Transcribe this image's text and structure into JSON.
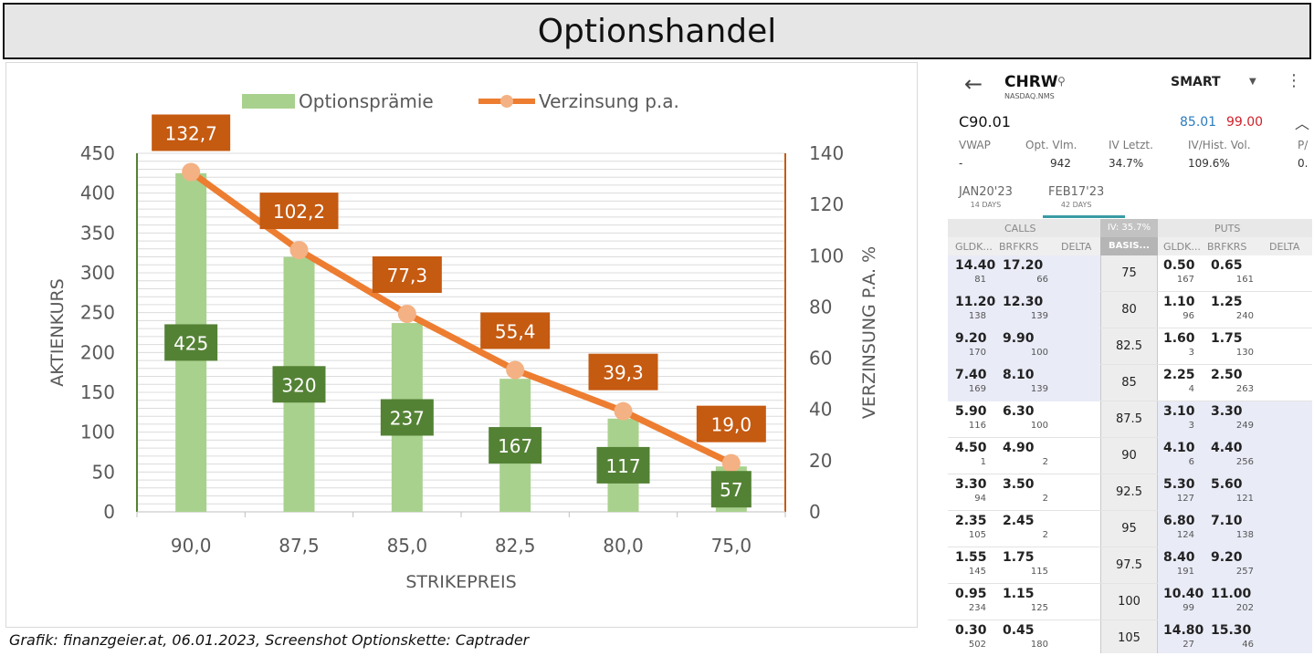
{
  "title": "Optionshandel",
  "caption": "Grafik: finanzgeier.at, 06.01.2023, Screenshot Optionskette: Captrader",
  "colors": {
    "bar": "#a9d18e",
    "line": "#ed7d31",
    "marker": "#f4b183",
    "bar_label_bg": "#548235",
    "line_label_bg": "#c55a11",
    "axis_green": "#548235",
    "axis_orange": "#c55a11"
  },
  "chart_data": {
    "type": "bar",
    "categories": [
      "90,0",
      "87,5",
      "85,0",
      "82,5",
      "80,0",
      "75,0"
    ],
    "series": [
      {
        "name": "Optionsprämie",
        "type": "bar",
        "axis": "left",
        "values": [
          425,
          320,
          237,
          167,
          117,
          57
        ],
        "labels": [
          "425",
          "320",
          "237",
          "167",
          "117",
          "57"
        ]
      },
      {
        "name": "Verzinsung p.a.",
        "type": "line",
        "axis": "right",
        "values": [
          132.7,
          102.2,
          77.3,
          55.4,
          39.3,
          19.0
        ],
        "labels": [
          "132,7",
          "102,2",
          "77,3",
          "55,4",
          "39,3",
          "19,0"
        ]
      }
    ],
    "xlabel": "STRIKEPREIS",
    "ylabel": "AKTIENKURS",
    "y2label": "VERZINSUNG P.A. %",
    "ylim": [
      0,
      450
    ],
    "y2lim": [
      0,
      140
    ],
    "yticks": [
      "0",
      "50",
      "100",
      "150",
      "200",
      "250",
      "300",
      "350",
      "400",
      "450"
    ],
    "y2ticks": [
      "0",
      "20",
      "40",
      "60",
      "80",
      "100",
      "120",
      "140"
    ],
    "grid": true,
    "legend_position": "top"
  },
  "phone": {
    "back_icon": "←",
    "symbol": "CHRW",
    "exchange": "NASDAQ.NMS",
    "search_icon": "⚲",
    "routing": "SMART",
    "caret_icon": "▼",
    "menu_icon": "⋮",
    "contract": "C90.01",
    "bid": "85.01",
    "ask": "99.00",
    "collapse_icon": "︿",
    "stats": [
      {
        "label": "VWAP",
        "value": "-"
      },
      {
        "label": "Opt. Vlm.",
        "value": "942"
      },
      {
        "label": "IV Letzt.",
        "value": "34.7%"
      },
      {
        "label": "IV/Hist. Vol.",
        "value": "109.6%"
      },
      {
        "label": "P/",
        "value": "0."
      }
    ],
    "expiries": [
      {
        "date": "JAN20'23",
        "days": "14 DAYS"
      },
      {
        "date": "FEB17'23",
        "days": "42 DAYS"
      }
    ],
    "calls_label": "CALLS",
    "puts_label": "PUTS",
    "iv_label": "IV: 35.7%",
    "basis_label": "BASIS...",
    "col_gldk": "GLDK...",
    "col_brfkrs": "BRFKRS",
    "col_delta": "DELTA",
    "rows": [
      {
        "strike": "75",
        "cb": "14.40",
        "ca": "17.20",
        "cbq": "81",
        "caq": "66",
        "pb": "0.50",
        "pa": "0.65",
        "pbq": "167",
        "paq": "161"
      },
      {
        "strike": "80",
        "cb": "11.20",
        "ca": "12.30",
        "cbq": "138",
        "caq": "139",
        "pb": "1.10",
        "pa": "1.25",
        "pbq": "96",
        "paq": "240"
      },
      {
        "strike": "82.5",
        "cb": "9.20",
        "ca": "9.90",
        "cbq": "170",
        "caq": "100",
        "pb": "1.60",
        "pa": "1.75",
        "pbq": "3",
        "paq": "130"
      },
      {
        "strike": "85",
        "cb": "7.40",
        "ca": "8.10",
        "cbq": "169",
        "caq": "139",
        "pb": "2.25",
        "pa": "2.50",
        "pbq": "4",
        "paq": "263"
      },
      {
        "strike": "87.5",
        "cb": "5.90",
        "ca": "6.30",
        "cbq": "116",
        "caq": "100",
        "pb": "3.10",
        "pa": "3.30",
        "pbq": "3",
        "paq": "249"
      },
      {
        "strike": "90",
        "cb": "4.50",
        "ca": "4.90",
        "cbq": "1",
        "caq": "2",
        "pb": "4.10",
        "pa": "4.40",
        "pbq": "6",
        "paq": "256"
      },
      {
        "strike": "92.5",
        "cb": "3.30",
        "ca": "3.50",
        "cbq": "94",
        "caq": "2",
        "pb": "5.30",
        "pa": "5.60",
        "pbq": "127",
        "paq": "121"
      },
      {
        "strike": "95",
        "cb": "2.35",
        "ca": "2.45",
        "cbq": "105",
        "caq": "2",
        "pb": "6.80",
        "pa": "7.10",
        "pbq": "124",
        "paq": "138"
      },
      {
        "strike": "97.5",
        "cb": "1.55",
        "ca": "1.75",
        "cbq": "145",
        "caq": "115",
        "pb": "8.40",
        "pa": "9.20",
        "pbq": "191",
        "paq": "257"
      },
      {
        "strike": "100",
        "cb": "0.95",
        "ca": "1.15",
        "cbq": "234",
        "caq": "125",
        "pb": "10.40",
        "pa": "11.00",
        "pbq": "99",
        "paq": "202"
      },
      {
        "strike": "105",
        "cb": "0.30",
        "ca": "0.45",
        "cbq": "502",
        "caq": "180",
        "pb": "14.80",
        "pa": "15.30",
        "pbq": "27",
        "paq": "46"
      }
    ]
  }
}
